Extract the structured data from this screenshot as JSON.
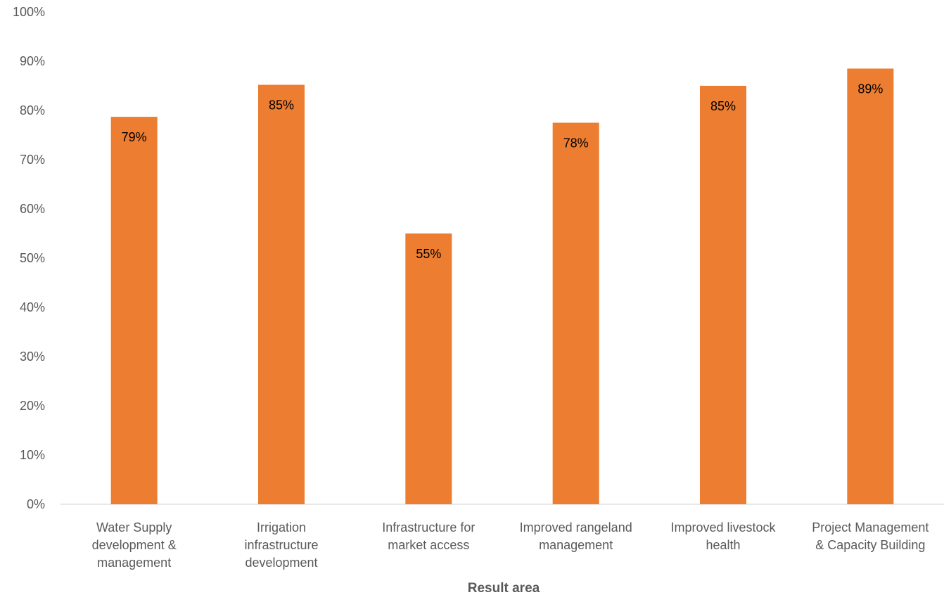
{
  "chart_data": {
    "type": "bar",
    "title": "",
    "xlabel": "Result area",
    "ylabel": "",
    "ylim": [
      0,
      100
    ],
    "yticks": [
      "0%",
      "10%",
      "20%",
      "30%",
      "40%",
      "50%",
      "60%",
      "70%",
      "80%",
      "90%",
      "100%"
    ],
    "categories": [
      [
        "Water Supply",
        "development &",
        "management"
      ],
      [
        "Irrigation",
        "infrastructure",
        "development"
      ],
      [
        "Infrastructure for",
        "market access"
      ],
      [
        "Improved rangeland",
        "management"
      ],
      [
        "Improved livestock",
        "health"
      ],
      [
        "Project Management",
        "& Capacity Building"
      ]
    ],
    "values": [
      78.7,
      85.2,
      55.0,
      77.5,
      85.0,
      88.5
    ],
    "data_labels": [
      "79%",
      "85%",
      "55%",
      "78%",
      "85%",
      "89%"
    ],
    "bar_color": "#ED7D31",
    "grid": false,
    "legend": "none"
  }
}
